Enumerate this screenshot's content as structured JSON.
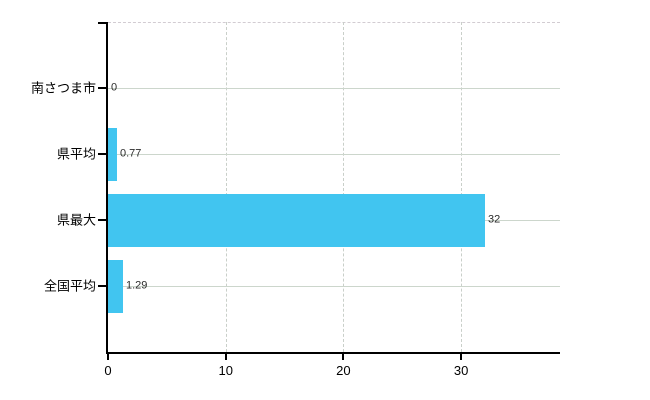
{
  "chart_data": {
    "type": "bar",
    "orientation": "horizontal",
    "title": "",
    "xlabel": "",
    "ylabel": "",
    "categories": [
      "南さつま市",
      "県平均",
      "県最大",
      "全国平均"
    ],
    "values": [
      0,
      0.77,
      32,
      1.29
    ],
    "value_labels": [
      "0",
      "0.77",
      "32",
      "1.29"
    ],
    "xlim": [
      0,
      38.4
    ],
    "xticks": [
      0,
      10,
      20,
      30
    ],
    "xtick_labels": [
      "0",
      "10",
      "20",
      "30"
    ],
    "legend": null,
    "grid": {
      "horizontal_lines": "solid, one per category",
      "vertical_lines": "dashed at each x tick",
      "plot_top_border": "dashed"
    },
    "colors": {
      "bar": "#41c5f0",
      "axis": "#000000",
      "grid_horizontal": "#ccd6cc",
      "grid_vertical": "#c9cfc9",
      "top_border": "#d2ccd2",
      "category_text": "#000000",
      "value_text": "#2b2b2b",
      "background": "#ffffff"
    }
  }
}
